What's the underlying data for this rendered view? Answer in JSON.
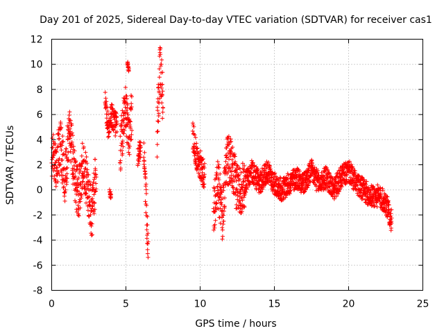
{
  "chart_data": {
    "type": "scatter",
    "title": "Day 201 of 2025, Sidereal Day-to-day VTEC variation (SDTVAR) for receiver cas1",
    "xlabel": "GPS time / hours",
    "ylabel": "SDTVAR / TECUs",
    "xlim": [
      0,
      25
    ],
    "ylim": [
      -8,
      12
    ],
    "xticks": [
      "0",
      "5",
      "10",
      "15",
      "20",
      "25"
    ],
    "yticks": [
      "-8",
      "-6",
      "-4",
      "-2",
      "0",
      "2",
      "4",
      "6",
      "8",
      "10",
      "12"
    ],
    "grid": true,
    "marker": "+",
    "color": "#ff0000",
    "series": [
      {
        "name": "SDTVAR",
        "segments": [
          {
            "x": [
              0.0,
              0.3,
              0.6,
              0.9,
              1.2,
              1.5,
              1.8,
              2.1,
              2.4,
              2.7,
              3.0
            ],
            "y": [
              3.0,
              2.0,
              3.5,
              1.0,
              5.0,
              1.5,
              -0.5,
              2.0,
              0.5,
              -2.0,
              1.5
            ],
            "spread": 2.0
          },
          {
            "x": [
              3.6,
              3.8,
              4.0,
              4.2,
              4.4
            ],
            "y": [
              7.5,
              5.0,
              6.0,
              5.5,
              5.0
            ],
            "spread": 1.0
          },
          {
            "x": [
              3.9,
              4.0
            ],
            "y": [
              -0.2,
              -0.5
            ],
            "spread": 0.3
          },
          {
            "x": [
              4.6,
              4.8,
              5.0,
              5.2,
              5.4
            ],
            "y": [
              3.0,
              5.0,
              6.5,
              4.5,
              6.0
            ],
            "spread": 2.0
          },
          {
            "x": [
              5.1,
              5.2
            ],
            "y": [
              10.2,
              9.5
            ],
            "spread": 0.3
          },
          {
            "x": [
              5.8,
              6.0
            ],
            "y": [
              2.5,
              3.5
            ],
            "spread": 0.8
          },
          {
            "x": [
              6.2,
              6.4,
              6.5
            ],
            "y": [
              3.0,
              -2.0,
              -5.5
            ],
            "spread": 1.5
          },
          {
            "x": [
              7.1,
              7.3,
              7.5
            ],
            "y": [
              4.0,
              10.0,
              7.0
            ],
            "spread": 2.0
          },
          {
            "x": [
              9.5,
              9.7,
              10.0,
              10.3
            ],
            "y": [
              4.5,
              3.0,
              2.0,
              1.0
            ],
            "spread": 1.2
          },
          {
            "x": [
              10.9,
              11.2,
              11.5,
              11.8,
              12.1,
              12.4,
              12.7,
              13.0
            ],
            "y": [
              -1.5,
              0.5,
              -2.0,
              2.5,
              2.0,
              0.5,
              0.0,
              0.5
            ],
            "spread": 2.0
          },
          {
            "x": [
              13.0,
              13.5,
              14.0,
              14.5,
              15.0,
              15.5,
              16.0,
              16.5,
              17.0,
              17.5,
              18.0,
              18.5,
              19.0,
              19.5,
              20.0,
              20.5,
              21.0,
              21.5,
              22.0,
              22.5,
              22.9
            ],
            "y": [
              0.5,
              1.5,
              0.5,
              1.5,
              0.5,
              0.0,
              0.5,
              1.0,
              0.5,
              1.5,
              0.5,
              1.0,
              0.0,
              1.0,
              1.5,
              0.5,
              0.0,
              -0.5,
              -0.5,
              -1.0,
              -2.5
            ],
            "spread": 0.9
          }
        ]
      }
    ]
  }
}
